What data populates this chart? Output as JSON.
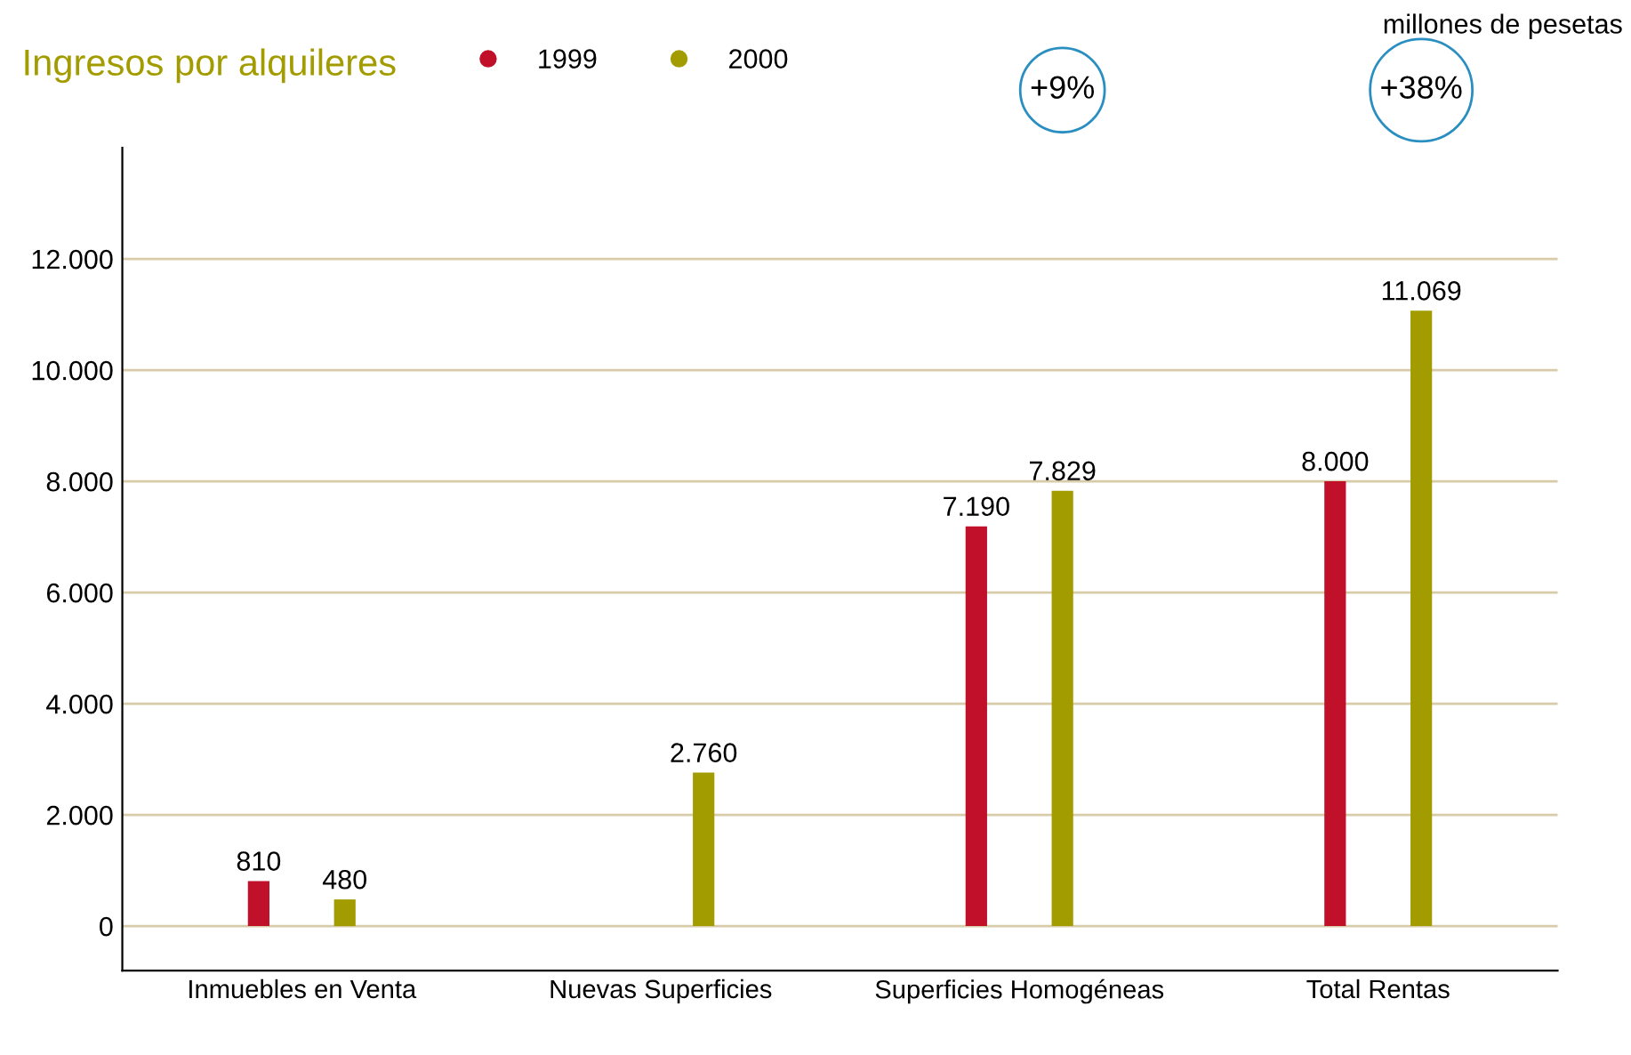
{
  "chart_data": {
    "type": "bar",
    "title": "Ingresos por alquileres",
    "annotations": [
      "millones de pesetas",
      "+9%",
      "+38%"
    ],
    "categories": [
      "Inmuebles en Venta",
      "Nuevas Superficies",
      "Superficies Homogéneas",
      "Total Rentas"
    ],
    "series": [
      {
        "name": "1999",
        "color": "#c0102a",
        "values": [
          810,
          null,
          7190,
          8000
        ],
        "value_labels": [
          "810",
          null,
          "7.190",
          "8.000"
        ]
      },
      {
        "name": "2000",
        "color": "#a39c00",
        "values": [
          480,
          2760,
          7829,
          11069
        ],
        "value_labels": [
          "480",
          "2.760",
          "7.829",
          "11.069"
        ]
      }
    ],
    "ylim": [
      -800,
      14000
    ],
    "yticks": [
      {
        "value": 0,
        "label": "0"
      },
      {
        "value": 2000,
        "label": "2.000"
      },
      {
        "value": 4000,
        "label": "4.000"
      },
      {
        "value": 6000,
        "label": "6.000"
      },
      {
        "value": 8000,
        "label": "8.000"
      },
      {
        "value": 10000,
        "label": "10.000"
      },
      {
        "value": 12000,
        "label": "12.000"
      }
    ],
    "grid": "y",
    "legend": "top"
  }
}
